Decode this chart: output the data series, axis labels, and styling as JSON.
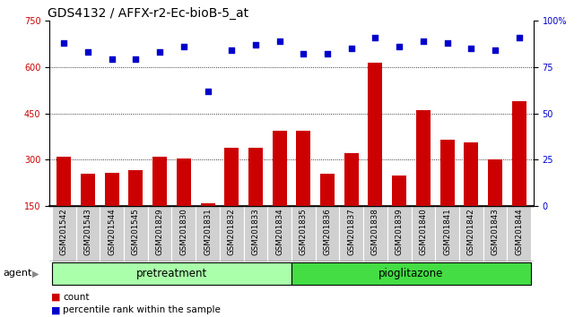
{
  "title": "GDS4132 / AFFX-r2-Ec-bioB-5_at",
  "categories": [
    "GSM201542",
    "GSM201543",
    "GSM201544",
    "GSM201545",
    "GSM201829",
    "GSM201830",
    "GSM201831",
    "GSM201832",
    "GSM201833",
    "GSM201834",
    "GSM201835",
    "GSM201836",
    "GSM201837",
    "GSM201838",
    "GSM201839",
    "GSM201840",
    "GSM201841",
    "GSM201842",
    "GSM201843",
    "GSM201844"
  ],
  "bar_values": [
    310,
    255,
    258,
    265,
    310,
    305,
    160,
    340,
    340,
    395,
    395,
    255,
    320,
    615,
    250,
    460,
    365,
    355,
    300,
    490
  ],
  "dot_values": [
    88,
    83,
    79,
    79,
    83,
    86,
    62,
    84,
    87,
    89,
    82,
    82,
    85,
    91,
    86,
    89,
    88,
    85,
    84,
    91
  ],
  "bar_color": "#cc0000",
  "dot_color": "#0000cc",
  "ylim_left": [
    150,
    750
  ],
  "ylim_right": [
    0,
    100
  ],
  "yticks_left": [
    150,
    300,
    450,
    600,
    750
  ],
  "yticks_right": [
    0,
    25,
    50,
    75,
    100
  ],
  "yticklabels_right": [
    "0",
    "25",
    "50",
    "75",
    "100%"
  ],
  "grid_lines": [
    300,
    450,
    600
  ],
  "pretreatment_count": 10,
  "pioglitazone_count": 10,
  "agent_label": "agent",
  "group1_label": "pretreatment",
  "group2_label": "pioglitazone",
  "legend_bar_label": "count",
  "legend_dot_label": "percentile rank within the sample",
  "bg_color_tick": "#d0d0d0",
  "bg_color_pre": "#aaffaa",
  "bg_color_pio": "#44dd44",
  "title_fontsize": 10,
  "tick_fontsize": 7,
  "bar_width": 0.6
}
